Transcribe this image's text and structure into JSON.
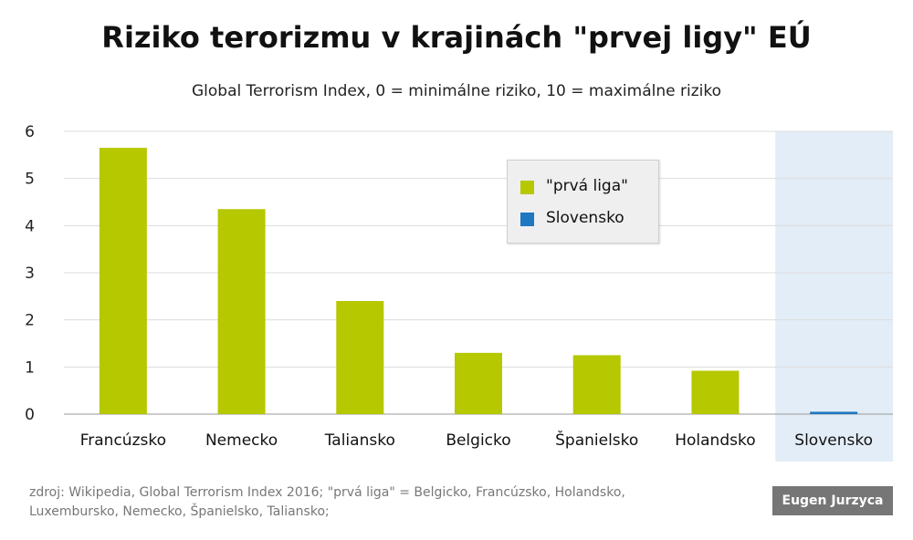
{
  "title": "Riziko terorizmu v krajinách \"prvej ligy\" EÚ",
  "subtitle": "Global Terrorism Index, 0 = minimálne riziko, 10 = maximálne riziko",
  "source": "zdroj: Wikipedia, Global Terrorism Index 2016; \"prvá liga\" = Belgicko, Francúzsko, Holandsko, Luxembursko, Nemecko, Španielsko, Taliansko;",
  "author": "Eugen Jurzyca",
  "legend": [
    {
      "label": "\"prvá liga\"",
      "color": "#b5c800"
    },
    {
      "label": "Slovensko",
      "color": "#1f77c2"
    }
  ],
  "chart_data": {
    "type": "bar",
    "categories": [
      "Francúzsko",
      "Nemecko",
      "Taliansko",
      "Belgicko",
      "Španielsko",
      "Holandsko",
      "Slovensko"
    ],
    "values": [
      5.65,
      4.35,
      2.4,
      1.3,
      1.25,
      0.92,
      0.05
    ],
    "groups": [
      "\"prvá liga\"",
      "\"prvá liga\"",
      "\"prvá liga\"",
      "\"prvá liga\"",
      "\"prvá liga\"",
      "\"prvá liga\"",
      "Slovensko"
    ],
    "ylim": [
      0,
      6
    ],
    "yticks": [
      0,
      1,
      2,
      3,
      4,
      5,
      6
    ],
    "grid": true,
    "highlight_category": "Slovensko",
    "highlight_color": "#e3edf7",
    "legend_position": "top-right",
    "xlabel": "",
    "ylabel": ""
  }
}
